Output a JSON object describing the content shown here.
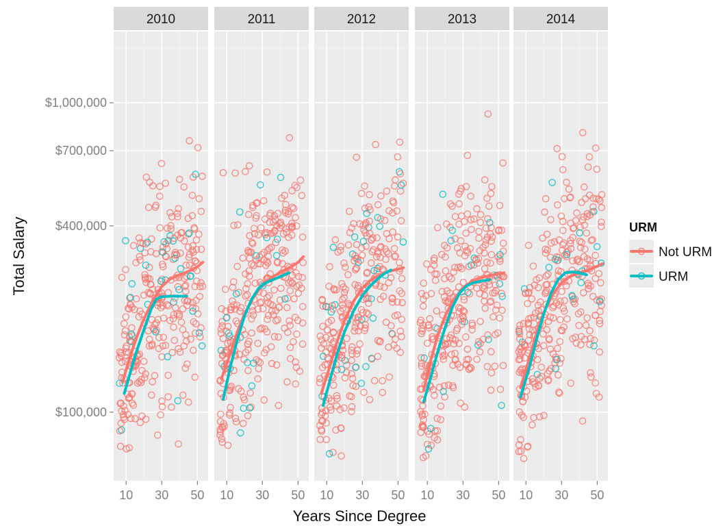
{
  "chart_data": {
    "type": "scatter",
    "xlabel": "Years Since Degree",
    "ylabel": "Total Salary",
    "x_scale": "linear",
    "y_scale": "log",
    "xlim": [
      3,
      56
    ],
    "ylim": [
      60000,
      1700000
    ],
    "x_ticks": [
      10,
      30,
      50
    ],
    "x_tick_labels": [
      "10",
      "30",
      "50"
    ],
    "y_ticks": [
      100000,
      400000,
      700000,
      1000000
    ],
    "y_tick_labels": [
      "$100,000",
      "$400,000",
      "$700,000",
      "$1,000,000"
    ],
    "grid": true,
    "facets": [
      "2010",
      "2011",
      "2012",
      "2013",
      "2014"
    ],
    "legend": {
      "title": "URM",
      "placement": "right",
      "entries": [
        {
          "label": "Not URM",
          "color": "#F8766D"
        },
        {
          "label": "URM",
          "color": "#00BFC4"
        }
      ]
    },
    "colors": {
      "Not URM": "#F8766D",
      "URM": "#00BFC4",
      "panel": "#EBEBEB",
      "strip": "#D9D9D9"
    },
    "smooth_lines": {
      "2010": {
        "Not URM": {
          "x": [
            8,
            12,
            16,
            20,
            25,
            30,
            35,
            40,
            45,
            50,
            53
          ],
          "y": [
            125000,
            150000,
            175000,
            200000,
            230000,
            255000,
            270000,
            278000,
            285000,
            295000,
            305000
          ]
        },
        "URM": {
          "x": [
            9,
            12,
            16,
            20,
            24,
            27,
            30,
            35,
            40,
            44
          ],
          "y": [
            115000,
            132000,
            158000,
            185000,
            215000,
            232000,
            236000,
            237000,
            237000,
            237000
          ]
        }
      },
      "2011": {
        "Not URM": {
          "x": [
            7,
            12,
            16,
            20,
            25,
            30,
            35,
            40,
            45,
            50,
            53
          ],
          "y": [
            128000,
            155000,
            182000,
            208000,
            235000,
            258000,
            272000,
            283000,
            292000,
            305000,
            318000
          ]
        },
        "URM": {
          "x": [
            8,
            12,
            16,
            20,
            24,
            28,
            32,
            36,
            40,
            45
          ],
          "y": [
            110000,
            140000,
            172000,
            205000,
            232000,
            252000,
            262000,
            268000,
            274000,
            282000
          ]
        }
      },
      "2012": {
        "Not URM": {
          "x": [
            7,
            12,
            16,
            20,
            25,
            30,
            35,
            40,
            45,
            50,
            53
          ],
          "y": [
            115000,
            142000,
            170000,
            198000,
            228000,
            252000,
            268000,
            278000,
            285000,
            290000,
            293000
          ]
        },
        "URM": {
          "x": [
            8,
            12,
            16,
            20,
            25,
            30,
            35,
            40,
            43,
            46
          ],
          "y": [
            105000,
            128000,
            155000,
            182000,
            212000,
            238000,
            258000,
            274000,
            282000,
            288000
          ]
        }
      },
      "2013": {
        "Not URM": {
          "x": [
            8,
            12,
            16,
            20,
            25,
            30,
            35,
            40,
            45,
            50,
            53
          ],
          "y": [
            118000,
            148000,
            178000,
            205000,
            232000,
            252000,
            265000,
            272000,
            276000,
            280000,
            282000
          ]
        },
        "URM": {
          "x": [
            8,
            12,
            16,
            20,
            24,
            28,
            32,
            36,
            40,
            45
          ],
          "y": [
            108000,
            130000,
            158000,
            188000,
            218000,
            242000,
            256000,
            262000,
            265000,
            268000
          ]
        }
      },
      "2014": {
        "Not URM": {
          "x": [
            7,
            12,
            16,
            20,
            25,
            30,
            35,
            40,
            45,
            50,
            53
          ],
          "y": [
            120000,
            150000,
            180000,
            210000,
            240000,
            262000,
            275000,
            282000,
            288000,
            296000,
            302000
          ]
        },
        "URM": {
          "x": [
            7,
            12,
            16,
            20,
            24,
            28,
            32,
            36,
            40,
            44
          ],
          "y": [
            112000,
            140000,
            172000,
            208000,
            242000,
            268000,
            282000,
            284000,
            282000,
            278000
          ]
        }
      }
    }
  }
}
